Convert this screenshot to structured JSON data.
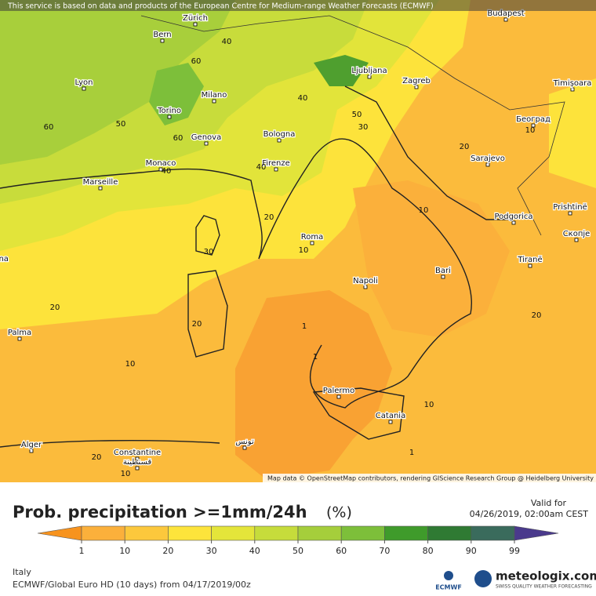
{
  "notice": "This service is based on data and products of the European Centre for Medium-range Weather Forecasts (ECMWF)",
  "attribution": "Map data © OpenStreetMap contributors, rendering GIScience Research Group @ Heidelberg University",
  "cities": [
    "Zürich",
    "Budapest",
    "Bern",
    "Lyon",
    "Milano",
    "Ljubljana",
    "Zagreb",
    "Timișoara",
    "Torino",
    "Bologna",
    "Београд",
    "Genova",
    "Monaco",
    "Firenze",
    "Sarajevo",
    "Marseille",
    "Podgorica",
    "Prishtinë",
    "Roma",
    "Скопје",
    "Barcelona",
    "Tiranë",
    "Bari",
    "Napoli",
    "Palma",
    "Palermo",
    "Catania",
    "Alger",
    "Constantine",
    "قسنطينة",
    "تونس"
  ],
  "contour_labels": [
    "60",
    "40",
    "60",
    "50",
    "60",
    "40",
    "40",
    "40",
    "50",
    "30",
    "20",
    "10",
    "20",
    "10",
    "30",
    "10",
    "20",
    "20",
    "1",
    "10",
    "1",
    "10",
    "1",
    "20",
    "10",
    "20"
  ],
  "legend": {
    "title": "Prob. precipitation >=1mm/24h",
    "unit": "(%)",
    "ticks": [
      1,
      10,
      20,
      30,
      40,
      50,
      60,
      70,
      80,
      90,
      99
    ],
    "colors": [
      "#f7931e",
      "#fbb03b",
      "#fcc83c",
      "#fde43b",
      "#e4e53a",
      "#c6dc3b",
      "#a5ce3b",
      "#7dbf3a",
      "#3f9b2b",
      "#2f7a33",
      "#3a6b5c",
      "#4a3a8c"
    ]
  },
  "valid_label": "Valid for",
  "valid_time": "04/26/2019, 02:00am CEST",
  "region": "Italy",
  "model_run": "ECMWF/Global Euro HD (10 days) from 04/17/2019/00z",
  "brand": "meteologix.com",
  "brand_tagline": "SWISS QUALITY WEATHER FORECASTING",
  "ecmwf_logo": "ECMWF"
}
